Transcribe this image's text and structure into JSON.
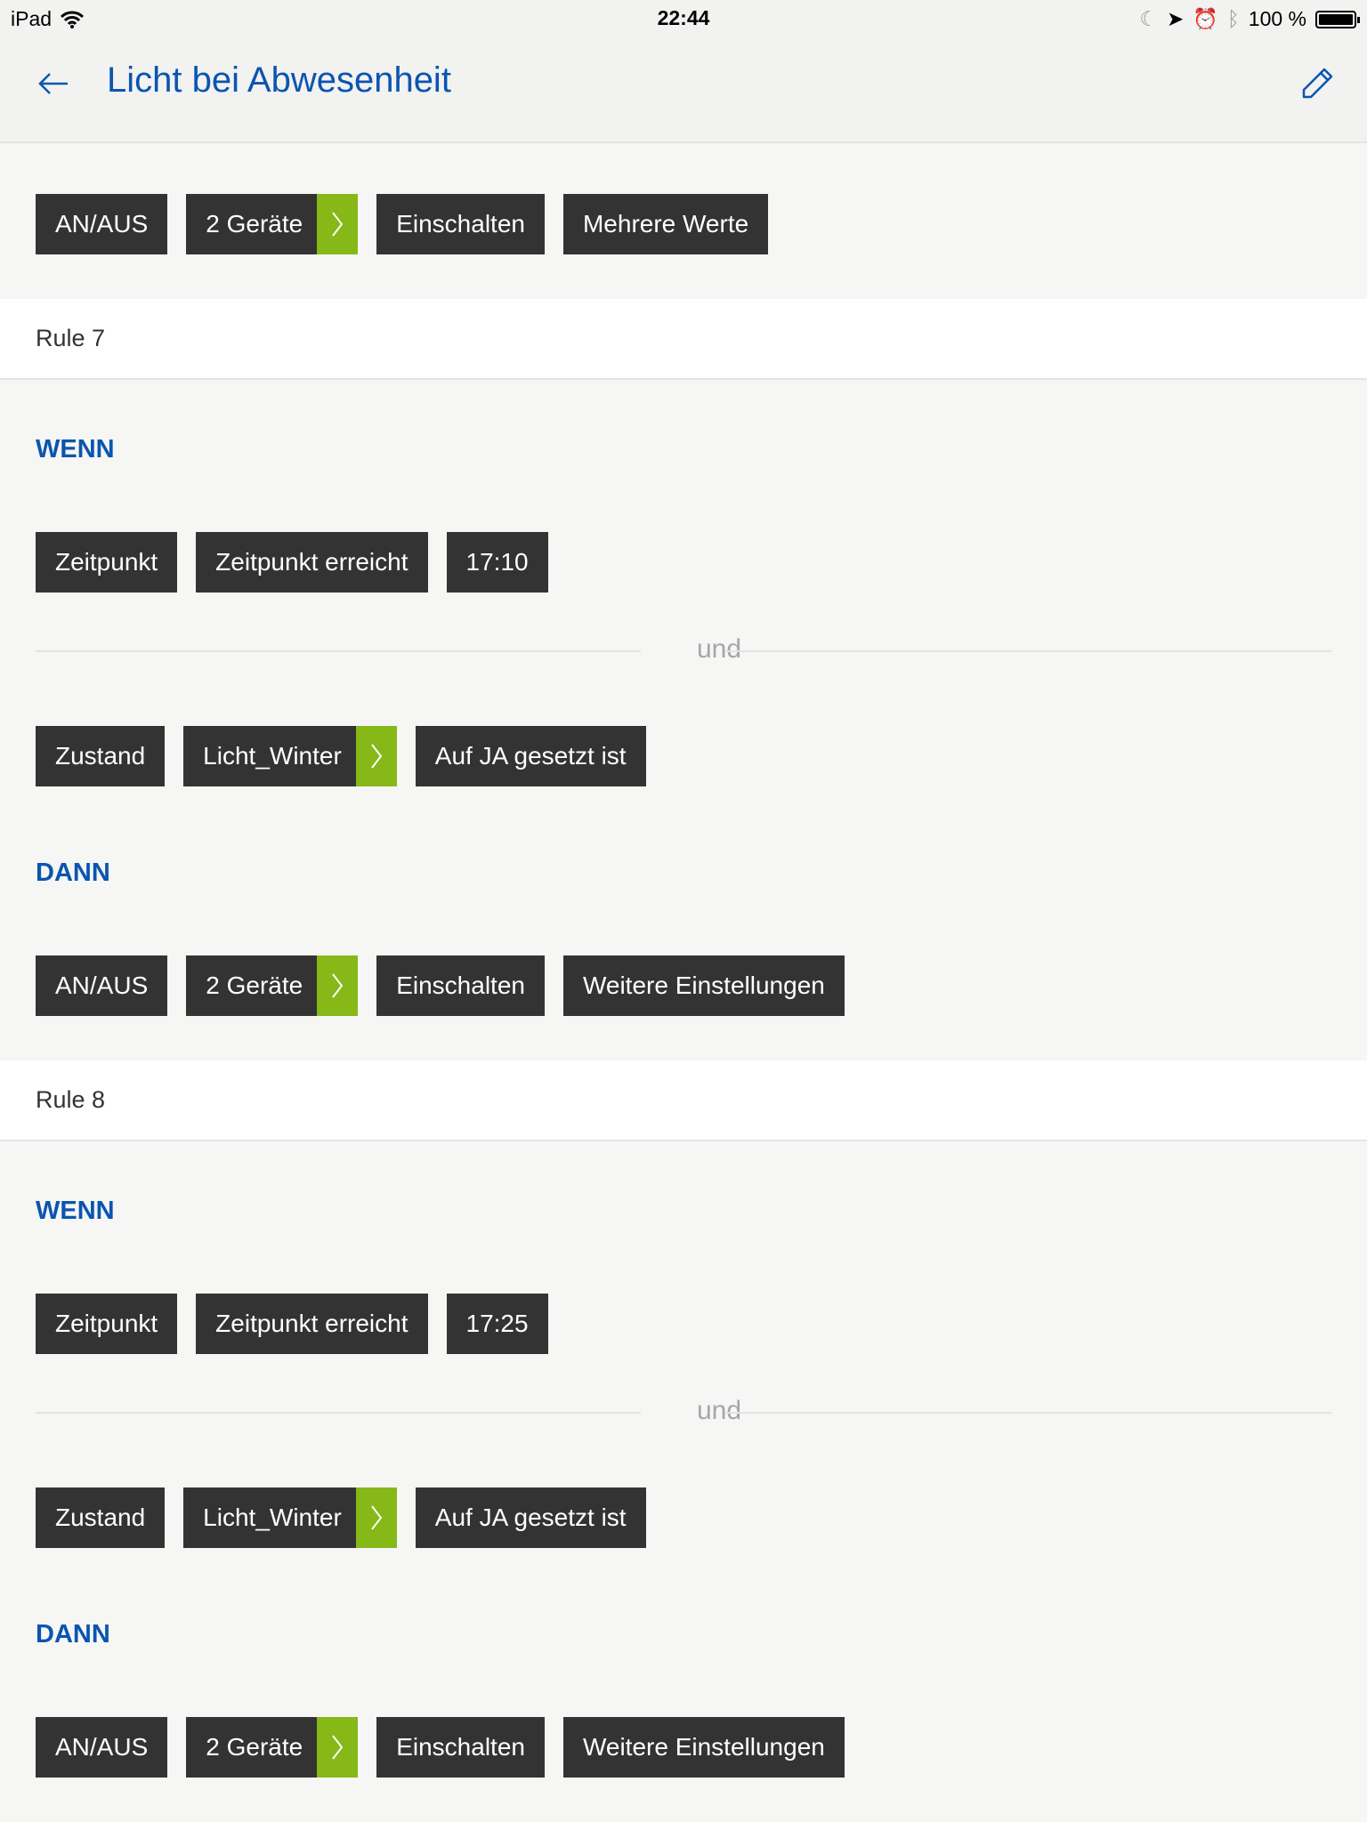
{
  "status_bar": {
    "device": "iPad",
    "time": "22:44",
    "battery": "100 %"
  },
  "header": {
    "title": "Licht bei Abwesenheit",
    "back_icon": "arrow-left-icon",
    "edit_icon": "pencil-icon"
  },
  "colors": {
    "accent": "#0a55b0",
    "chip": "#333333",
    "chip_arrow": "#86b817"
  },
  "top_row": [
    "AN/AUS",
    "2 Geräte",
    "Einschalten",
    "Mehrere Werte"
  ],
  "rules": [
    {
      "name": "Rule 7",
      "wenn": "WENN",
      "dann": "DANN",
      "connector": "und",
      "cond1": [
        "Zeitpunkt",
        "Zeitpunkt erreicht",
        "17:10"
      ],
      "cond2": [
        "Zustand",
        "Licht_Winter",
        "Auf JA gesetzt ist"
      ],
      "action": [
        "AN/AUS",
        "2 Geräte",
        "Einschalten",
        "Weitere Einstellungen"
      ]
    },
    {
      "name": "Rule 8",
      "wenn": "WENN",
      "dann": "DANN",
      "connector": "und",
      "cond1": [
        "Zeitpunkt",
        "Zeitpunkt erreicht",
        "17:25"
      ],
      "cond2": [
        "Zustand",
        "Licht_Winter",
        "Auf JA gesetzt ist"
      ],
      "action": [
        "AN/AUS",
        "2 Geräte",
        "Einschalten",
        "Weitere Einstellungen"
      ]
    }
  ]
}
